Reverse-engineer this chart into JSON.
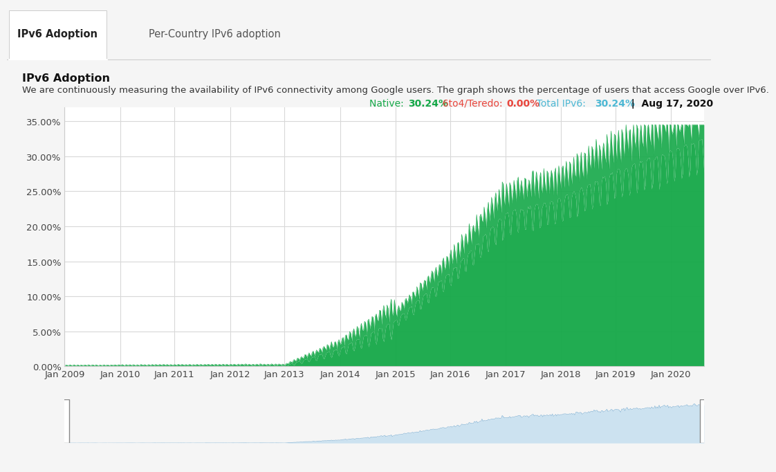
{
  "title_tab1": "IPv6 Adoption",
  "title_tab2": "Per-Country IPv6 adoption",
  "section_title": "IPv6 Adoption",
  "description": "We are continuously measuring the availability of IPv6 connectivity among Google users. The graph shows the percentage of users that access Google over IPv6.",
  "legend_native_label": "Native:",
  "legend_native_value": "30.24%",
  "legend_6to4_label": "6to4/Teredo:",
  "legend_6to4_value": "0.00%",
  "legend_total_label": "Total IPv6:",
  "legend_total_value": "30.24%",
  "legend_date": "Aug 17, 2020",
  "native_color": "#15a848",
  "teredo_color": "#e8453c",
  "total_color": "#4db8d4",
  "ylim": [
    0.0,
    0.37
  ],
  "yticks": [
    0.0,
    0.05,
    0.1,
    0.15,
    0.2,
    0.25,
    0.3,
    0.35
  ],
  "ytick_labels": [
    "0.00%",
    "5.00%",
    "10.00%",
    "15.00%",
    "20.00%",
    "25.00%",
    "30.00%",
    "35.00%"
  ],
  "xtick_labels": [
    "Jan 2009",
    "Jan 2010",
    "Jan 2011",
    "Jan 2012",
    "Jan 2013",
    "Jan 2014",
    "Jan 2015",
    "Jan 2016",
    "Jan 2017",
    "Jan 2018",
    "Jan 2019",
    "Jan 2020"
  ],
  "tab_bg": "#f0f0f0",
  "tab_active_bg": "#ffffff",
  "content_bg": "#ffffff",
  "grid_color": "#d8d8d8",
  "fill_color_native": "#15a848",
  "minimap_fill_color": "#c5dff0",
  "minimap_line_color": "#8ab8d8",
  "minimap_bg": "#e8f4fb"
}
